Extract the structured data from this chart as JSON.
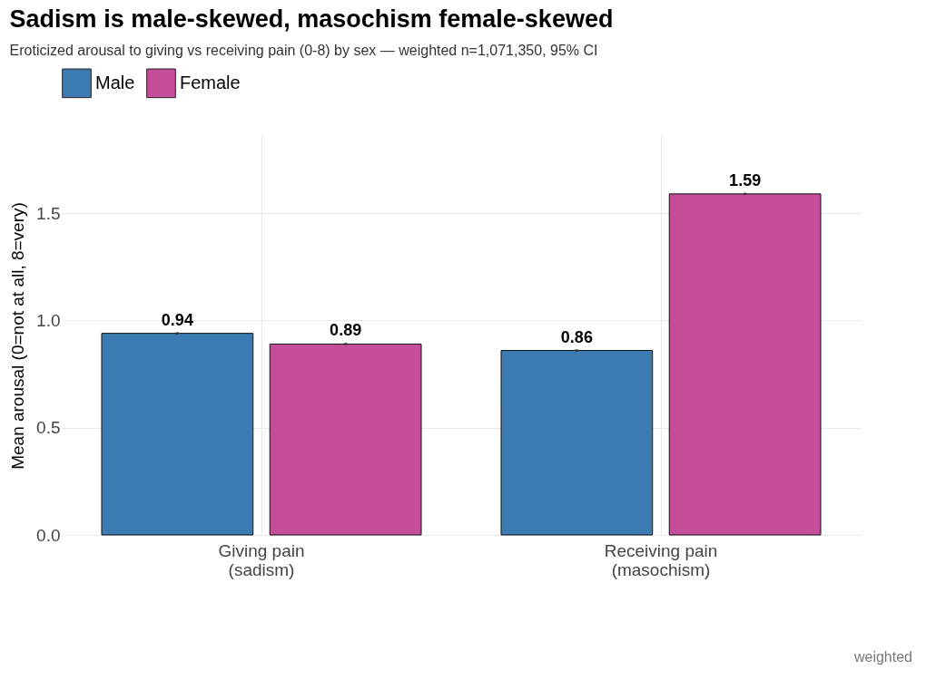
{
  "chart_data": {
    "type": "bar",
    "title": "Sadism is male-skewed, masochism female-skewed",
    "subtitle": "Eroticized arousal to giving vs receiving pain (0-8) by sex — weighted n=1,071,350, 95% CI",
    "ylabel": "Mean arousal (0=not at all, 8=very)",
    "categories": [
      "Giving pain\n(sadism)",
      "Receiving pain\n(masochism)"
    ],
    "series": [
      {
        "name": "Male",
        "color": "#3b7bb1",
        "values": [
          0.94,
          0.86
        ],
        "errors": [
          0.005,
          0.005
        ]
      },
      {
        "name": "Female",
        "color": "#c44e9a",
        "values": [
          0.89,
          1.59
        ],
        "errors": [
          0.005,
          0.005
        ]
      }
    ],
    "ylim": [
      0,
      1.86
    ],
    "yticks": [
      {
        "value": 0,
        "label": "0.0"
      },
      {
        "value": 0.5,
        "label": "0.5"
      },
      {
        "value": 1,
        "label": "1.0"
      },
      {
        "value": 1.5,
        "label": "1.5"
      }
    ],
    "grid": true,
    "legend": "top left",
    "data_labels": true,
    "annotations": [
      "weighted"
    ]
  }
}
